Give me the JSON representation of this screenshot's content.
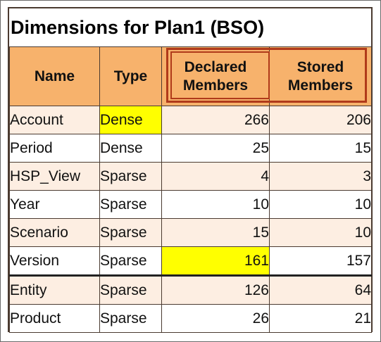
{
  "title": "Dimensions for Plan1 (BSO)",
  "columns": {
    "name": "Name",
    "type": "Type",
    "declared_line1": "Declared",
    "declared_line2": "Members",
    "stored_line1": "Stored",
    "stored_line2": "Members"
  },
  "rows": [
    {
      "name": "Account",
      "type": "Dense",
      "declared": "266",
      "stored": "206"
    },
    {
      "name": "Period",
      "type": "Dense",
      "declared": "25",
      "stored": "15"
    },
    {
      "name": "HSP_View",
      "type": "Sparse",
      "declared": "4",
      "stored": "3"
    },
    {
      "name": "Year",
      "type": "Sparse",
      "declared": "10",
      "stored": "10"
    },
    {
      "name": "Scenario",
      "type": "Sparse",
      "declared": "15",
      "stored": "10"
    },
    {
      "name": "Version",
      "type": "Sparse",
      "declared": "161",
      "stored": "157"
    },
    {
      "name": "Entity",
      "type": "Sparse",
      "declared": "126",
      "stored": "64"
    },
    {
      "name": "Product",
      "type": "Sparse",
      "declared": "26",
      "stored": "21"
    }
  ],
  "colors": {
    "header_bg": "#f7b26c",
    "alt_row_bg": "#fdeee2",
    "highlight_yellow": "#ffff00",
    "outline_red": "#b03a1a"
  }
}
